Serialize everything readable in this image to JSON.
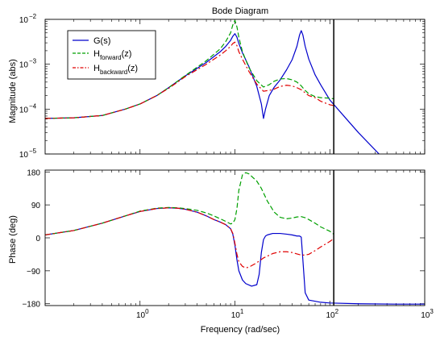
{
  "chart_data": [
    {
      "type": "line",
      "title": "Bode Diagram",
      "ylabel": "Magnitude (abs)",
      "xlabel": "",
      "xscale": "log",
      "yscale": "log",
      "xlim": [
        0.1,
        1000
      ],
      "ylim": [
        1e-05,
        0.01
      ],
      "xticks": [
        {
          "v": 1,
          "base": "10",
          "exp": "0"
        },
        {
          "v": 10,
          "base": "10",
          "exp": "1"
        },
        {
          "v": 100,
          "base": "10",
          "exp": "2"
        },
        {
          "v": 1000,
          "base": "10",
          "exp": "3"
        }
      ],
      "yticks": [
        {
          "v": 1e-05,
          "base": "10",
          "exp": "−5"
        },
        {
          "v": 0.0001,
          "base": "10",
          "exp": "−4"
        },
        {
          "v": 0.001,
          "base": "10",
          "exp": "−3"
        },
        {
          "v": 0.01,
          "base": "10",
          "exp": "−2"
        }
      ],
      "vline_x": 110,
      "legend": {
        "placement": "top-left",
        "entries": [
          {
            "main": "G(s)",
            "sub": "",
            "tail": ""
          },
          {
            "main": "H",
            "sub": "forward",
            "tail": "(z)"
          },
          {
            "main": "H",
            "sub": "backward",
            "tail": "(z)"
          }
        ]
      },
      "series": [
        {
          "name": "G(s)",
          "color": "#0000cc",
          "dash": "solid",
          "x": [
            0.1,
            0.2,
            0.4,
            0.7,
            1,
            1.5,
            2,
            3,
            5,
            7,
            8,
            9,
            9.5,
            10,
            10.5,
            11,
            12,
            14,
            17,
            19,
            20,
            21,
            23,
            26,
            30,
            35,
            40,
            45,
            48,
            50,
            52,
            55,
            60,
            70,
            80,
            100,
            150,
            200,
            330
          ],
          "y": [
            6.2e-05,
            6.4e-05,
            7.2e-05,
            0.0001,
            0.00013,
            0.0002,
            0.0003,
            0.00055,
            0.0011,
            0.0019,
            0.0025,
            0.0034,
            0.0042,
            0.0048,
            0.004,
            0.0029,
            0.0018,
            0.0009,
            0.00032,
            0.00013,
            6.2e-05,
            0.0001,
            0.0002,
            0.00031,
            0.00045,
            0.00075,
            0.00125,
            0.0025,
            0.0045,
            0.0056,
            0.0045,
            0.0025,
            0.0013,
            0.00058,
            0.00035,
            0.00016,
            6e-05,
            3e-05,
            1e-05
          ]
        },
        {
          "name": "H(z) forward",
          "color": "#00a000",
          "dash": "6,3",
          "x": [
            0.1,
            0.2,
            0.4,
            0.7,
            1,
            1.5,
            2,
            3,
            5,
            7,
            8,
            9,
            9.5,
            10,
            10.5,
            11,
            12,
            14,
            17,
            20,
            23,
            26,
            30,
            35,
            40,
            45,
            50,
            55,
            60,
            70,
            80,
            100,
            110
          ],
          "y": [
            6.2e-05,
            6.4e-05,
            7.2e-05,
            0.0001,
            0.00013,
            0.0002,
            0.0003,
            0.00056,
            0.0012,
            0.0022,
            0.0032,
            0.005,
            0.0075,
            0.0095,
            0.0068,
            0.004,
            0.0019,
            0.00085,
            0.00043,
            0.00031,
            0.00035,
            0.00042,
            0.00047,
            0.00048,
            0.00045,
            0.0004,
            0.00033,
            0.00026,
            0.00022,
            0.00019,
            0.00018,
            0.000175,
            0.00017
          ]
        },
        {
          "name": "H(z) backward",
          "color": "#e00000",
          "dash": "7,3,2,3",
          "x": [
            0.1,
            0.2,
            0.4,
            0.7,
            1,
            1.5,
            2,
            3,
            5,
            7,
            8,
            9,
            9.5,
            10,
            10.5,
            11,
            12,
            14,
            17,
            20,
            25,
            30,
            35,
            40,
            45,
            50,
            55,
            60,
            70,
            80,
            100,
            110
          ],
          "y": [
            6.2e-05,
            6.4e-05,
            7.2e-05,
            0.0001,
            0.00013,
            0.0002,
            0.00029,
            0.00053,
            0.001,
            0.0016,
            0.002,
            0.0025,
            0.0029,
            0.0031,
            0.0026,
            0.0019,
            0.0013,
            0.0007,
            0.00036,
            0.00025,
            0.00027,
            0.00032,
            0.00034,
            0.00033,
            0.0003,
            0.00027,
            0.00023,
            0.0002,
            0.00018,
            0.00015,
            0.000125,
            0.00012
          ]
        }
      ]
    },
    {
      "type": "line",
      "title": "",
      "ylabel": "Phase (deg)",
      "xlabel": "Frequency (rad/sec)",
      "xscale": "log",
      "yscale": "linear",
      "xlim": [
        0.1,
        1000
      ],
      "ylim": [
        -185,
        185
      ],
      "xticks": [
        {
          "v": 1,
          "base": "10",
          "exp": "0"
        },
        {
          "v": 10,
          "base": "10",
          "exp": "1"
        },
        {
          "v": 100,
          "base": "10",
          "exp": "2"
        },
        {
          "v": 1000,
          "base": "10",
          "exp": "3"
        }
      ],
      "yticks": [
        {
          "v": 180,
          "text": "180"
        },
        {
          "v": 90,
          "text": "90"
        },
        {
          "v": 0,
          "text": "0"
        },
        {
          "v": -90,
          "text": "−90"
        },
        {
          "v": -180,
          "text": "−180"
        }
      ],
      "vline_x": 110,
      "series": [
        {
          "name": "G(s)",
          "color": "#0000cc",
          "dash": "solid",
          "x": [
            0.1,
            0.2,
            0.4,
            0.7,
            1,
            1.5,
            2,
            2.5,
            3,
            4,
            5,
            6,
            7,
            8,
            9,
            9.5,
            10,
            10.5,
            11,
            12,
            13,
            15,
            17,
            18,
            19,
            20,
            21,
            22,
            25,
            30,
            35,
            40,
            45,
            48,
            50,
            52,
            55,
            60,
            80,
            100,
            200,
            500,
            1000
          ],
          "y": [
            8,
            20,
            40,
            60,
            72,
            80,
            82,
            81,
            78,
            70,
            60,
            50,
            43,
            36,
            25,
            10,
            -20,
            -60,
            -90,
            -115,
            -125,
            -132,
            -128,
            -100,
            -40,
            -5,
            5,
            8,
            12,
            12,
            10,
            8,
            5,
            5,
            2,
            -60,
            -150,
            -170,
            -176,
            -178,
            -180,
            -181,
            -181
          ]
        },
        {
          "name": "H(z) forward",
          "color": "#00a000",
          "dash": "6,3",
          "x": [
            0.1,
            0.2,
            0.4,
            0.7,
            1,
            1.5,
            2,
            2.5,
            3,
            4,
            5,
            6,
            7,
            8,
            9,
            9.5,
            10,
            10.5,
            11,
            12,
            13,
            14,
            15,
            17,
            19,
            22,
            26,
            30,
            35,
            40,
            45,
            50,
            55,
            60,
            70,
            80,
            100,
            110
          ],
          "y": [
            8,
            20,
            40,
            60,
            73,
            81,
            83,
            82,
            80,
            75,
            68,
            60,
            52,
            45,
            38,
            40,
            50,
            80,
            130,
            172,
            178,
            175,
            168,
            155,
            135,
            100,
            70,
            56,
            52,
            54,
            57,
            58,
            55,
            50,
            40,
            30,
            18,
            10
          ]
        },
        {
          "name": "H(z) backward",
          "color": "#e00000",
          "dash": "7,3,2,3",
          "x": [
            0.1,
            0.2,
            0.4,
            0.7,
            1,
            1.5,
            2,
            2.5,
            3,
            4,
            5,
            6,
            7,
            8,
            9,
            9.5,
            10,
            10.5,
            11,
            12,
            13,
            14,
            15,
            17,
            20,
            25,
            30,
            35,
            40,
            45,
            50,
            55,
            60,
            70,
            80,
            100,
            110
          ],
          "y": [
            8,
            20,
            40,
            60,
            72,
            80,
            82,
            81,
            78,
            70,
            60,
            50,
            43,
            36,
            25,
            12,
            -15,
            -45,
            -65,
            -78,
            -82,
            -80,
            -76,
            -68,
            -55,
            -43,
            -38,
            -38,
            -40,
            -44,
            -47,
            -47,
            -45,
            -35,
            -25,
            -10,
            -2
          ]
        }
      ]
    }
  ]
}
